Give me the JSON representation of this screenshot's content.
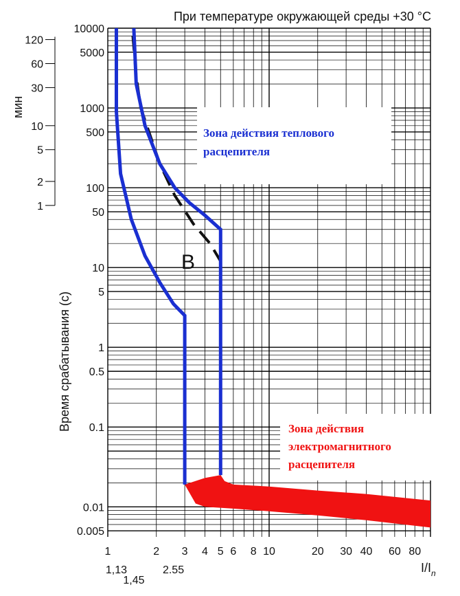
{
  "chart_data": {
    "type": "line",
    "title": "При температуре окружающей среды +30 °C",
    "ylabel": "Время срабатывания (с)",
    "ylabel_min": "мин",
    "xlabel": "I/I",
    "xlabel_sub": "n",
    "x_scale": "log",
    "y_scale": "log",
    "xlim": [
      1,
      100
    ],
    "ylim": [
      0.004,
      10000
    ],
    "grid": true,
    "x_ticks": [
      1,
      2,
      3,
      4,
      5,
      6,
      8,
      10,
      20,
      30,
      40,
      60,
      80
    ],
    "x_tick_labels": [
      "1",
      "2",
      "3",
      "4",
      "5",
      "6",
      "8",
      "10",
      "20",
      "30",
      "40",
      "60",
      "80"
    ],
    "x_extra_ticks": [
      1.13,
      1.45,
      2.55
    ],
    "x_extra_tick_labels": [
      "1,13",
      "1,45",
      "2.55"
    ],
    "y_ticks": [
      10000,
      5000,
      1000,
      500,
      100,
      50,
      10,
      5,
      1,
      0.5,
      0.1,
      0.01,
      0.005
    ],
    "y_tick_labels": [
      "10000",
      "5000",
      "1000",
      "500",
      "100",
      "50",
      "10",
      "5",
      "1",
      "0.5",
      "0.1",
      "0.01",
      "0.005"
    ],
    "min_ticks": [
      120,
      60,
      30,
      10,
      5,
      2,
      1
    ],
    "min_tick_labels": [
      "120",
      "60",
      "30",
      "10",
      "5",
      "2",
      "1"
    ],
    "curve_label": "B",
    "zones": {
      "thermal": [
        "Зона действия теплового",
        "расцепителя"
      ],
      "magnetic": [
        "Зона действия",
        "электромагнитного",
        "расцепителя"
      ]
    },
    "colors": {
      "limit_curves": "#1a2fd1",
      "typical_curve": "#111111",
      "magnetic_zone": "#f01212",
      "grid": "#000000"
    },
    "series": [
      {
        "role": "lower-limit",
        "points": [
          [
            1.13,
            10000
          ],
          [
            1.13,
            900
          ],
          [
            1.2,
            150
          ],
          [
            1.4,
            40
          ],
          [
            1.7,
            14
          ],
          [
            2.1,
            6.5
          ],
          [
            2.55,
            3.5
          ],
          [
            3,
            2.5
          ],
          [
            3,
            0.019
          ]
        ]
      },
      {
        "role": "upper-limit",
        "points": [
          [
            1.45,
            10000
          ],
          [
            1.5,
            2000
          ],
          [
            1.7,
            600
          ],
          [
            2.1,
            200
          ],
          [
            2.6,
            100
          ],
          [
            3.2,
            65
          ],
          [
            4,
            45
          ],
          [
            5,
            30
          ],
          [
            5,
            0.025
          ]
        ]
      },
      {
        "role": "typical",
        "points": [
          [
            1.43,
            8000
          ],
          [
            1.5,
            2500
          ],
          [
            1.6,
            1000
          ],
          [
            1.8,
            500
          ],
          [
            2.1,
            200
          ],
          [
            2.6,
            80
          ],
          [
            3.4,
            35
          ],
          [
            4.3,
            20
          ],
          [
            5,
            12
          ]
        ]
      }
    ],
    "magnetic_band": {
      "upper": [
        [
          3,
          0.019
        ],
        [
          4,
          0.023
        ],
        [
          5,
          0.025
        ],
        [
          5.3,
          0.021
        ],
        [
          6,
          0.019
        ],
        [
          10,
          0.018
        ],
        [
          20,
          0.016
        ],
        [
          40,
          0.0145
        ],
        [
          100,
          0.012
        ]
      ],
      "lower": [
        [
          100,
          0.0055
        ],
        [
          40,
          0.0068
        ],
        [
          20,
          0.0078
        ],
        [
          10,
          0.0088
        ],
        [
          6,
          0.0095
        ],
        [
          4,
          0.01
        ],
        [
          3.5,
          0.011
        ],
        [
          3,
          0.019
        ]
      ]
    }
  }
}
